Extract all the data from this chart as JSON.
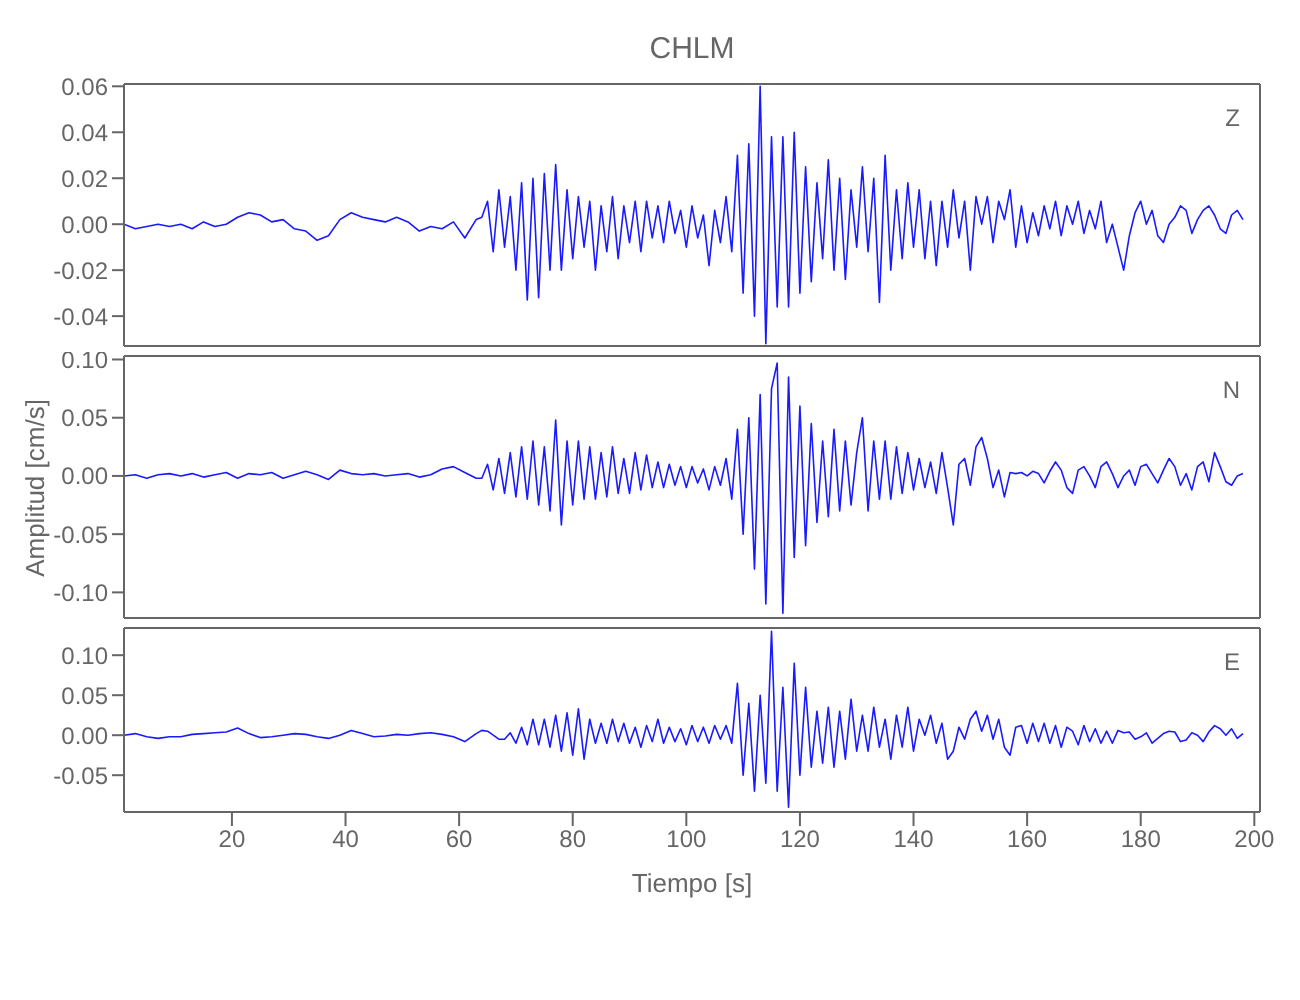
{
  "chart_data": [
    {
      "type": "line",
      "title": "CHLM",
      "annotations": [
        "Z"
      ],
      "xlim": [
        1,
        201
      ],
      "xticks": [
        20,
        40,
        60,
        80,
        100,
        120,
        140,
        160,
        180,
        200
      ],
      "ylim": [
        -0.053,
        0.061
      ],
      "yticks": [
        {
          "value": -0.04,
          "label": "-0.04"
        },
        {
          "value": -0.02,
          "label": "-0.02"
        },
        {
          "value": 0,
          "label": "0.00"
        },
        {
          "value": 0.02,
          "label": "0.02"
        },
        {
          "value": 0.04,
          "label": "0.04"
        },
        {
          "value": 0.06,
          "label": "0.06"
        }
      ],
      "tick_labels": "y",
      "x": [
        1,
        3,
        5,
        7,
        9,
        11,
        13,
        15,
        17,
        19,
        21,
        23,
        25,
        27,
        29,
        31,
        33,
        35,
        37,
        39,
        41,
        43,
        45,
        47,
        49,
        51,
        53,
        55,
        57,
        59,
        61,
        63,
        64,
        65,
        66,
        67,
        68,
        69,
        70,
        71,
        72,
        73,
        74,
        75,
        76,
        77,
        78,
        79,
        80,
        81,
        82,
        83,
        84,
        85,
        86,
        87,
        88,
        89,
        90,
        91,
        92,
        93,
        94,
        95,
        96,
        97,
        98,
        99,
        100,
        101,
        102,
        103,
        104,
        105,
        106,
        107,
        108,
        109,
        110,
        111,
        112,
        113,
        114,
        115,
        116,
        117,
        118,
        119,
        120,
        121,
        122,
        123,
        124,
        125,
        126,
        127,
        128,
        129,
        130,
        131,
        132,
        133,
        134,
        135,
        136,
        137,
        138,
        139,
        140,
        141,
        142,
        143,
        144,
        145,
        146,
        147,
        148,
        149,
        150,
        151,
        152,
        153,
        154,
        155,
        156,
        157,
        158,
        159,
        160,
        161,
        162,
        163,
        164,
        165,
        166,
        167,
        168,
        169,
        170,
        171,
        172,
        173,
        174,
        175,
        176,
        177,
        178,
        179,
        180,
        181,
        182,
        183,
        184,
        185,
        186,
        187,
        188,
        189,
        190,
        191,
        192,
        193,
        194,
        195,
        196,
        197,
        198
      ],
      "series": [
        {
          "color": "#1a1aff",
          "values": [
            0,
            -0.002,
            -0.001,
            0,
            -0.001,
            0,
            -0.002,
            0.001,
            -0.001,
            0,
            0.003,
            0.005,
            0.004,
            0.001,
            0.002,
            -0.002,
            -0.003,
            -0.007,
            -0.005,
            0.002,
            0.005,
            0.003,
            0.002,
            0.001,
            0.003,
            0.001,
            -0.003,
            -0.001,
            -0.002,
            0.001,
            -0.006,
            0.002,
            0.003,
            0.01,
            -0.012,
            0.015,
            -0.01,
            0.012,
            -0.02,
            0.018,
            -0.033,
            0.02,
            -0.032,
            0.022,
            -0.02,
            0.026,
            -0.02,
            0.015,
            -0.015,
            0.012,
            -0.01,
            0.01,
            -0.02,
            0.008,
            -0.012,
            0.012,
            -0.015,
            0.008,
            -0.008,
            0.01,
            -0.012,
            0.01,
            -0.006,
            0.008,
            -0.008,
            0.01,
            -0.004,
            0.006,
            -0.01,
            0.008,
            -0.006,
            0.004,
            -0.018,
            0.006,
            -0.008,
            0.012,
            -0.012,
            0.03,
            -0.03,
            0.035,
            -0.04,
            0.06,
            -0.052,
            0.038,
            -0.036,
            0.038,
            -0.036,
            0.04,
            -0.03,
            0.025,
            -0.025,
            0.018,
            -0.015,
            0.028,
            -0.02,
            0.02,
            -0.024,
            0.015,
            -0.01,
            0.025,
            -0.012,
            0.02,
            -0.034,
            0.03,
            -0.02,
            0.015,
            -0.015,
            0.018,
            -0.01,
            0.015,
            -0.015,
            0.01,
            -0.018,
            0.01,
            -0.01,
            0.015,
            -0.006,
            0.01,
            -0.02,
            0.012,
            0,
            0.012,
            -0.008,
            0.01,
            0.002,
            0.015,
            -0.01,
            0.008,
            -0.008,
            0.005,
            -0.005,
            0.008,
            -0.002,
            0.01,
            -0.005,
            0.008,
            0,
            0.01,
            -0.004,
            0.006,
            -0.002,
            0.01,
            -0.008,
            0,
            -0.01,
            -0.02,
            -0.005,
            0.005,
            0.01,
            0,
            0.006,
            -0.005,
            -0.008,
            0,
            0.003,
            0.008,
            0.006,
            -0.004,
            0.002,
            0.006,
            0.008,
            0.004,
            -0.002,
            -0.004,
            0.004,
            0.006,
            0.002
          ]
        }
      ]
    },
    {
      "type": "line",
      "ylabel": "Amplitud  [cm/s]",
      "annotations": [
        "N"
      ],
      "xlim": [
        1,
        201
      ],
      "xticks": [
        20,
        40,
        60,
        80,
        100,
        120,
        140,
        160,
        180,
        200
      ],
      "ylim": [
        -0.122,
        0.103
      ],
      "yticks": [
        {
          "value": -0.1,
          "label": "-0.10"
        },
        {
          "value": -0.05,
          "label": "-0.05"
        },
        {
          "value": 0,
          "label": "0.00"
        },
        {
          "value": 0.05,
          "label": "0.05"
        },
        {
          "value": 0.1,
          "label": "0.10"
        }
      ],
      "tick_labels": "y",
      "x": [
        1,
        3,
        5,
        7,
        9,
        11,
        13,
        15,
        17,
        19,
        21,
        23,
        25,
        27,
        29,
        31,
        33,
        35,
        37,
        39,
        41,
        43,
        45,
        47,
        49,
        51,
        53,
        55,
        57,
        59,
        61,
        63,
        64,
        65,
        66,
        67,
        68,
        69,
        70,
        71,
        72,
        73,
        74,
        75,
        76,
        77,
        78,
        79,
        80,
        81,
        82,
        83,
        84,
        85,
        86,
        87,
        88,
        89,
        90,
        91,
        92,
        93,
        94,
        95,
        96,
        97,
        98,
        99,
        100,
        101,
        102,
        103,
        104,
        105,
        106,
        107,
        108,
        109,
        110,
        111,
        112,
        113,
        114,
        115,
        116,
        117,
        118,
        119,
        120,
        121,
        122,
        123,
        124,
        125,
        126,
        127,
        128,
        129,
        130,
        131,
        132,
        133,
        134,
        135,
        136,
        137,
        138,
        139,
        140,
        141,
        142,
        143,
        144,
        145,
        146,
        147,
        148,
        149,
        150,
        151,
        152,
        153,
        154,
        155,
        156,
        157,
        158,
        159,
        160,
        161,
        162,
        163,
        164,
        165,
        166,
        167,
        168,
        169,
        170,
        171,
        172,
        173,
        174,
        175,
        176,
        177,
        178,
        179,
        180,
        181,
        182,
        183,
        184,
        185,
        186,
        187,
        188,
        189,
        190,
        191,
        192,
        193,
        194,
        195,
        196,
        197,
        198
      ],
      "series": [
        {
          "color": "#1a1aff",
          "values": [
            0,
            0.001,
            -0.002,
            0.001,
            0.002,
            0,
            0.002,
            -0.001,
            0.001,
            0.003,
            -0.002,
            0.002,
            0.001,
            0.003,
            -0.002,
            0.001,
            0.004,
            0.001,
            -0.003,
            0.005,
            0.002,
            0.001,
            0.002,
            0,
            0.001,
            0.002,
            -0.001,
            0.001,
            0.006,
            0.008,
            0.003,
            -0.002,
            -0.002,
            0.01,
            -0.012,
            0.015,
            -0.015,
            0.02,
            -0.018,
            0.025,
            -0.02,
            0.03,
            -0.025,
            0.025,
            -0.03,
            0.048,
            -0.042,
            0.03,
            -0.025,
            0.03,
            -0.02,
            0.025,
            -0.02,
            0.02,
            -0.018,
            0.025,
            -0.015,
            0.015,
            -0.015,
            0.02,
            -0.012,
            0.018,
            -0.01,
            0.012,
            -0.01,
            0.01,
            -0.008,
            0.008,
            -0.01,
            0.008,
            -0.006,
            0.006,
            -0.012,
            0.008,
            -0.008,
            0.015,
            -0.02,
            0.04,
            -0.05,
            0.05,
            -0.08,
            0.07,
            -0.11,
            0.075,
            0.097,
            -0.118,
            0.085,
            -0.07,
            0.06,
            -0.06,
            0.045,
            -0.04,
            0.03,
            -0.035,
            0.04,
            -0.03,
            0.03,
            -0.025,
            0.02,
            0.05,
            -0.03,
            0.03,
            -0.02,
            0.03,
            -0.02,
            0.025,
            -0.015,
            0.02,
            -0.012,
            0.015,
            -0.01,
            0.012,
            -0.015,
            0.02,
            -0.01,
            -0.042,
            0.01,
            0.015,
            -0.008,
            0.025,
            0.033,
            0.015,
            -0.01,
            0.005,
            -0.018,
            0.003,
            0.002,
            0.003,
            0,
            0.004,
            0.002,
            -0.006,
            0.004,
            0.012,
            0.005,
            -0.01,
            -0.015,
            0.005,
            0.008,
            0,
            -0.01,
            0.008,
            0.012,
            0.002,
            -0.01,
            0,
            0.005,
            -0.008,
            0.008,
            0.01,
            0.002,
            -0.006,
            0.005,
            0.015,
            0.008,
            -0.008,
            0.002,
            -0.012,
            0.008,
            0.012,
            -0.005,
            0.02,
            0.008,
            -0.005,
            -0.008,
            0,
            0.002
          ]
        }
      ]
    },
    {
      "type": "line",
      "xlabel": "Tiempo  [s]",
      "annotations": [
        "E"
      ],
      "xlim": [
        1,
        201
      ],
      "xticks": [
        20,
        40,
        60,
        80,
        100,
        120,
        140,
        160,
        180,
        200
      ],
      "ylim": [
        -0.096,
        0.134
      ],
      "yticks": [
        {
          "value": -0.05,
          "label": "-0.05"
        },
        {
          "value": 0,
          "label": "0.00"
        },
        {
          "value": 0.05,
          "label": "0.05"
        },
        {
          "value": 0.1,
          "label": "0.10"
        }
      ],
      "x": [
        1,
        3,
        5,
        7,
        9,
        11,
        13,
        15,
        17,
        19,
        21,
        23,
        25,
        27,
        29,
        31,
        33,
        35,
        37,
        39,
        41,
        43,
        45,
        47,
        49,
        51,
        53,
        55,
        57,
        59,
        61,
        63,
        64,
        65,
        66,
        67,
        68,
        69,
        70,
        71,
        72,
        73,
        74,
        75,
        76,
        77,
        78,
        79,
        80,
        81,
        82,
        83,
        84,
        85,
        86,
        87,
        88,
        89,
        90,
        91,
        92,
        93,
        94,
        95,
        96,
        97,
        98,
        99,
        100,
        101,
        102,
        103,
        104,
        105,
        106,
        107,
        108,
        109,
        110,
        111,
        112,
        113,
        114,
        115,
        116,
        117,
        118,
        119,
        120,
        121,
        122,
        123,
        124,
        125,
        126,
        127,
        128,
        129,
        130,
        131,
        132,
        133,
        134,
        135,
        136,
        137,
        138,
        139,
        140,
        141,
        142,
        143,
        144,
        145,
        146,
        147,
        148,
        149,
        150,
        151,
        152,
        153,
        154,
        155,
        156,
        157,
        158,
        159,
        160,
        161,
        162,
        163,
        164,
        165,
        166,
        167,
        168,
        169,
        170,
        171,
        172,
        173,
        174,
        175,
        176,
        177,
        178,
        179,
        180,
        181,
        182,
        183,
        184,
        185,
        186,
        187,
        188,
        189,
        190,
        191,
        192,
        193,
        194,
        195,
        196,
        197,
        198
      ],
      "series": [
        {
          "color": "#1a1aff",
          "values": [
            0,
            0.002,
            -0.002,
            -0.004,
            -0.002,
            -0.002,
            0.001,
            0.002,
            0.003,
            0.004,
            0.009,
            0.002,
            -0.003,
            -0.002,
            0,
            0.002,
            0.001,
            -0.002,
            -0.004,
            0,
            0.006,
            0.002,
            -0.002,
            -0.001,
            0.001,
            0,
            0.002,
            0.003,
            0.001,
            -0.002,
            -0.008,
            0.002,
            0.006,
            0.005,
            0,
            -0.005,
            -0.005,
            0.003,
            -0.01,
            0.01,
            -0.012,
            0.02,
            -0.012,
            0.02,
            -0.015,
            0.025,
            -0.02,
            0.028,
            -0.025,
            0.033,
            -0.03,
            0.02,
            -0.01,
            0.015,
            -0.01,
            0.02,
            -0.008,
            0.015,
            -0.01,
            0.01,
            -0.015,
            0.012,
            -0.008,
            0.02,
            -0.01,
            0.01,
            -0.008,
            0.008,
            -0.012,
            0.012,
            -0.008,
            0.01,
            -0.01,
            0.012,
            -0.005,
            0.012,
            -0.01,
            0.065,
            -0.05,
            0.04,
            -0.07,
            0.05,
            -0.06,
            0.13,
            -0.07,
            0.06,
            -0.09,
            0.09,
            -0.05,
            0.06,
            -0.04,
            0.03,
            -0.035,
            0.035,
            -0.04,
            0.03,
            -0.03,
            0.045,
            -0.02,
            0.025,
            -0.02,
            0.035,
            -0.015,
            0.02,
            -0.03,
            0.025,
            -0.015,
            0.035,
            -0.02,
            0.02,
            0,
            0.025,
            -0.01,
            0.015,
            -0.03,
            -0.02,
            0.01,
            -0.005,
            0.02,
            0.03,
            0.005,
            0.025,
            -0.005,
            0.02,
            -0.015,
            -0.025,
            0.01,
            0.012,
            -0.01,
            0.015,
            -0.008,
            0.015,
            -0.01,
            0.012,
            -0.015,
            0.01,
            0.005,
            -0.012,
            0.012,
            -0.008,
            0.008,
            -0.01,
            0.005,
            -0.01,
            0.006,
            0.003,
            0.004,
            -0.005,
            -0.002,
            0.003,
            -0.01,
            -0.004,
            0.002,
            0.005,
            0.004,
            -0.008,
            -0.006,
            0.003,
            0,
            -0.008,
            0.004,
            0.012,
            0.008,
            0,
            0.008,
            -0.004,
            0.002
          ]
        }
      ]
    }
  ]
}
